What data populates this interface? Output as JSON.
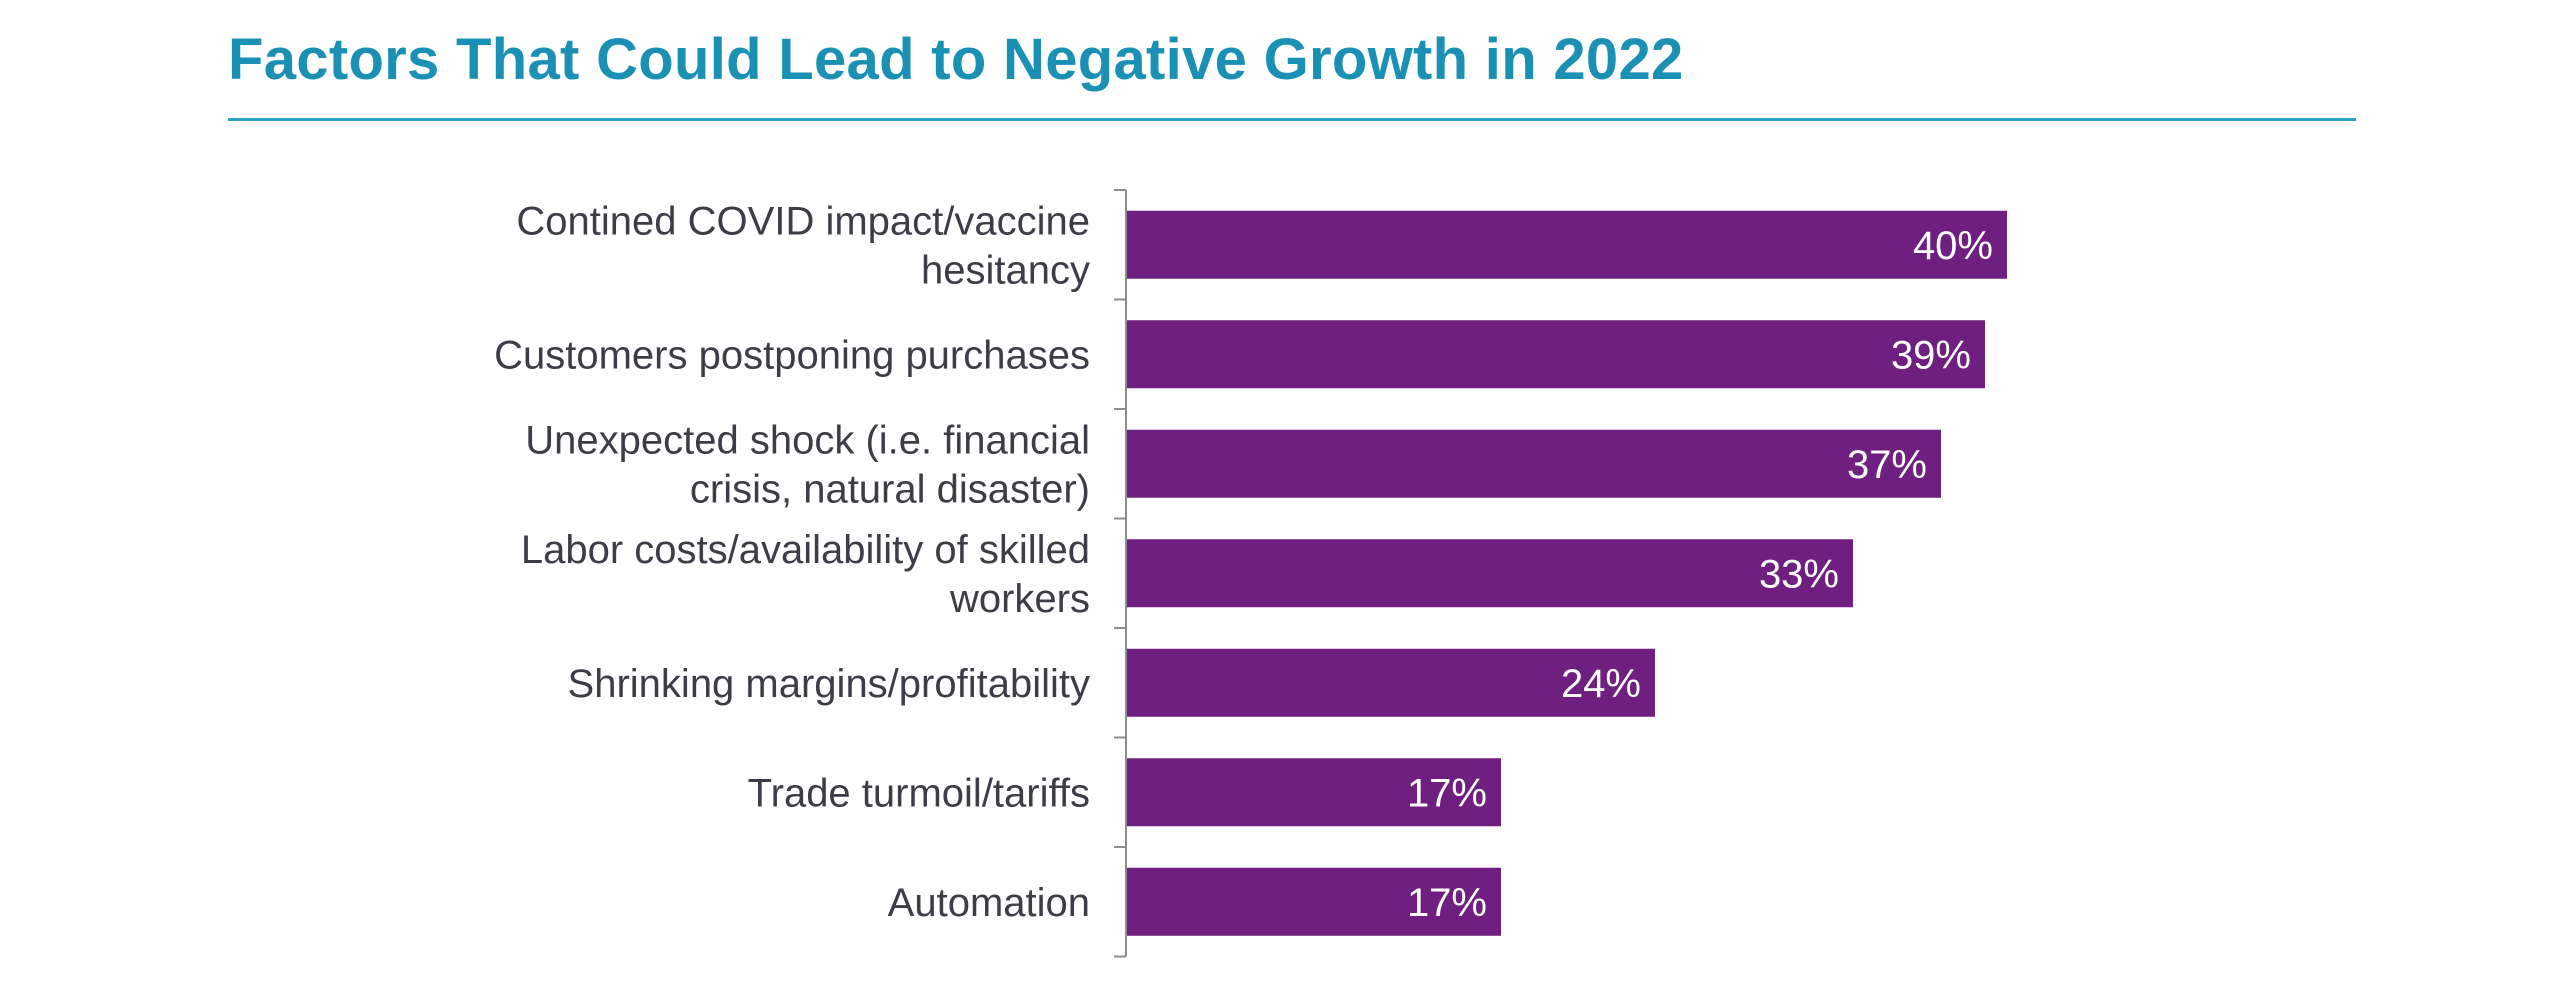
{
  "chart_data": {
    "type": "bar",
    "orientation": "horizontal",
    "title": "Factors That Could Lead to Negative Growth in 2022",
    "xlabel": "",
    "ylabel": "",
    "categories": [
      "Contined COVID impact/vaccine hesitancy",
      "Customers postponing purchases",
      "Unexpected shock (i.e. financial crisis, natural disaster)",
      "Labor costs/availability of skilled workers",
      "Shrinking margins/profitability",
      "Trade turmoil/tariffs",
      "Automation"
    ],
    "category_lines": [
      [
        "Contined COVID impact/vaccine",
        "hesitancy"
      ],
      [
        "Customers postponing purchases"
      ],
      [
        "Unexpected shock (i.e. financial",
        "crisis, natural disaster)"
      ],
      [
        "Labor costs/availability of skilled",
        "workers"
      ],
      [
        "Shrinking margins/profitability"
      ],
      [
        "Trade turmoil/tariffs"
      ],
      [
        "Automation"
      ]
    ],
    "values": [
      40,
      39,
      37,
      33,
      24,
      17,
      17
    ],
    "data_labels": [
      "40%",
      "39%",
      "37%",
      "33%",
      "24%",
      "17%",
      "17%"
    ],
    "xlim": [
      0,
      100
    ],
    "grid": false,
    "legend": false,
    "bar_color": "#6f1f7f",
    "title_color": "#1a90b5",
    "rule_color": "#2aa3c6",
    "axis_color": "#8c8c8c"
  }
}
